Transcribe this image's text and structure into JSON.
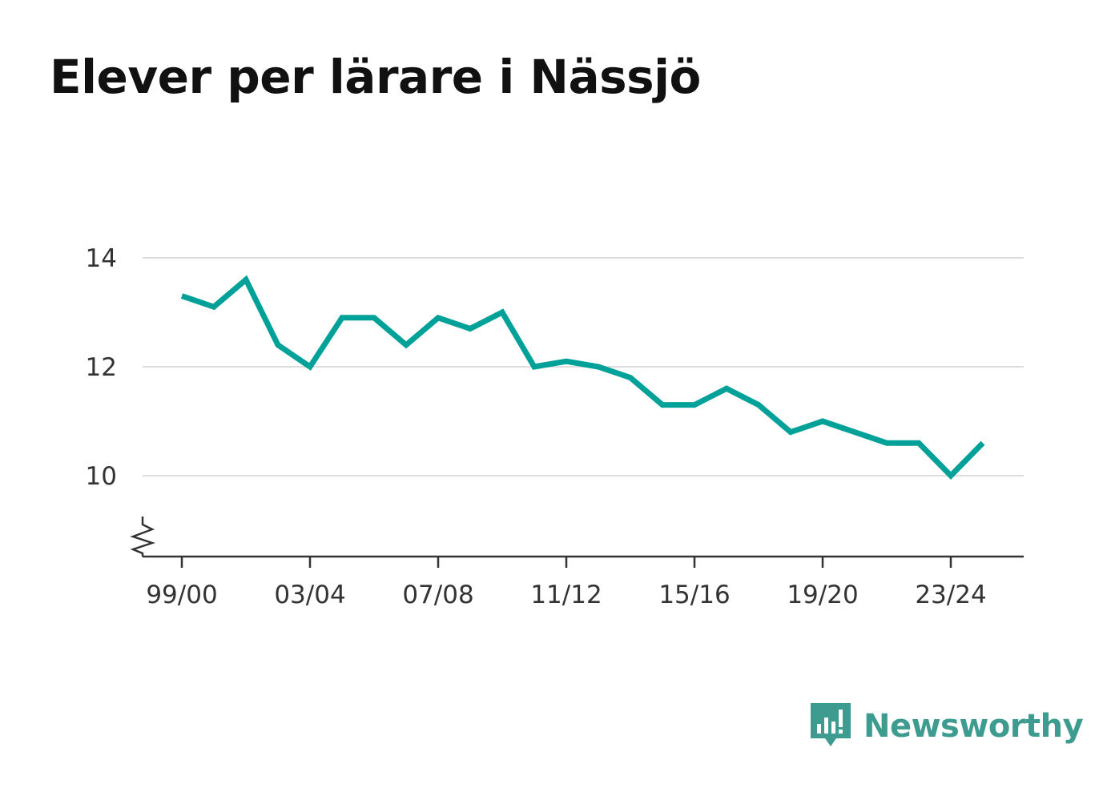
{
  "title": "Elever per lärare i Nässjö",
  "brand": {
    "name": "Newsworthy",
    "icon": "newsworthy-logo-icon",
    "color": "#3d9c8f"
  },
  "colors": {
    "line": "#00a198",
    "grid": "#dddddd",
    "axis": "#333333",
    "text": "#333333"
  },
  "chart_data": {
    "type": "line",
    "title": "Elever per lärare i Nässjö",
    "xlabel": "",
    "ylabel": "",
    "ylim": [
      8.5,
      14
    ],
    "y_ticks": [
      10,
      12,
      14
    ],
    "axis_break": true,
    "grid": true,
    "x_tick_labels": [
      "99/00",
      "03/04",
      "07/08",
      "11/12",
      "15/16",
      "19/20",
      "23/24"
    ],
    "categories": [
      "99/00",
      "00/01",
      "01/02",
      "02/03",
      "03/04",
      "04/05",
      "05/06",
      "06/07",
      "07/08",
      "08/09",
      "09/10",
      "10/11",
      "11/12",
      "12/13",
      "13/14",
      "14/15",
      "15/16",
      "16/17",
      "17/18",
      "18/19",
      "19/20",
      "20/21",
      "21/22",
      "22/23",
      "23/24",
      "24/25"
    ],
    "series": [
      {
        "values": [
          13.3,
          13.1,
          13.6,
          12.4,
          12.0,
          12.9,
          12.9,
          12.4,
          12.9,
          12.7,
          13.0,
          12.0,
          12.1,
          12.0,
          11.8,
          11.3,
          11.3,
          11.6,
          11.3,
          10.8,
          11.0,
          10.8,
          10.6,
          10.6,
          10.0,
          10.6
        ]
      }
    ]
  }
}
